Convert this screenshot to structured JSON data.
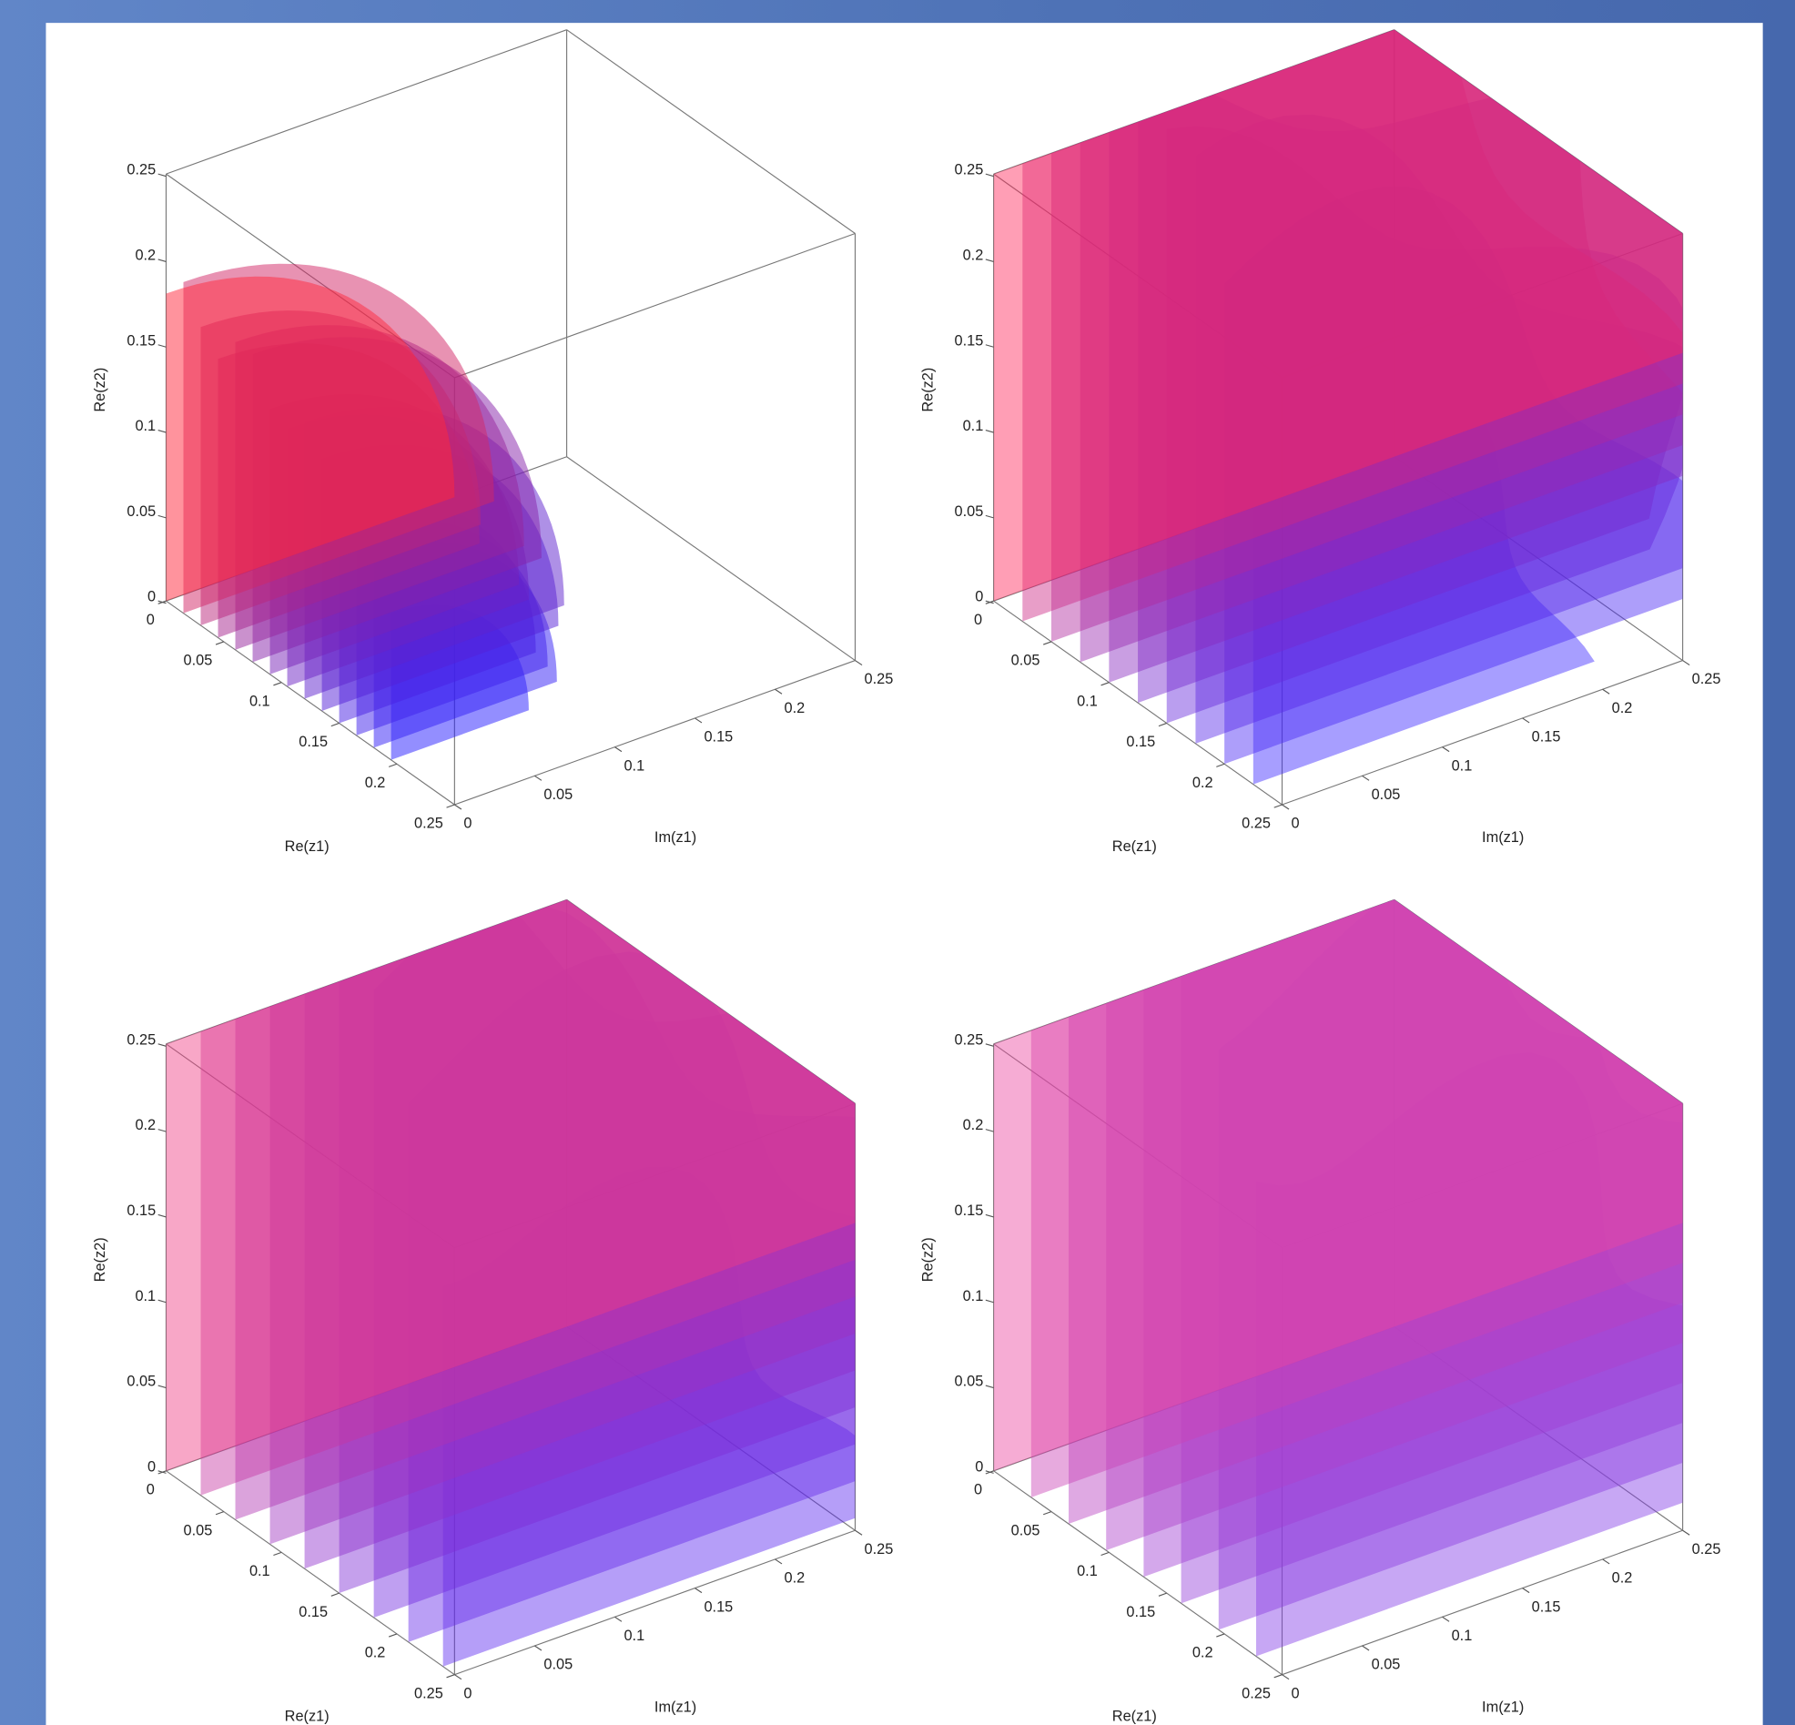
{
  "chart_data": [
    {
      "type": "surface3d",
      "xlabel": "Re(z1)",
      "ylabel": "Im(z1)",
      "zlabel": "Re(z2)",
      "xlim": [
        0,
        0.25
      ],
      "ylim": [
        0,
        0.25
      ],
      "zlim": [
        0,
        0.25
      ],
      "xticks": [
        0,
        0.05,
        0.1,
        0.15,
        0.2,
        0.25
      ],
      "yticks": [
        0,
        0.05,
        0.1,
        0.15,
        0.2,
        0.25
      ],
      "zticks": [
        0,
        0.05,
        0.1,
        0.15,
        0.2,
        0.25
      ]
    },
    {
      "type": "surface3d",
      "xlabel": "Re(z1)",
      "ylabel": "Im(z1)",
      "zlabel": "Re(z2)",
      "xlim": [
        0,
        0.25
      ],
      "ylim": [
        0,
        0.25
      ],
      "zlim": [
        0,
        0.25
      ],
      "xticks": [
        0,
        0.05,
        0.1,
        0.15,
        0.2,
        0.25
      ],
      "yticks": [
        0,
        0.05,
        0.1,
        0.15,
        0.2,
        0.25
      ],
      "zticks": [
        0,
        0.05,
        0.1,
        0.15,
        0.2,
        0.25
      ]
    },
    {
      "type": "surface3d",
      "xlabel": "Re(z1)",
      "ylabel": "Im(z1)",
      "zlabel": "Re(z2)",
      "xlim": [
        0,
        0.25
      ],
      "ylim": [
        0,
        0.25
      ],
      "zlim": [
        0,
        0.25
      ],
      "xticks": [
        0,
        0.05,
        0.1,
        0.15,
        0.2,
        0.25
      ],
      "yticks": [
        0,
        0.05,
        0.1,
        0.15,
        0.2,
        0.25
      ],
      "zticks": [
        0,
        0.05,
        0.1,
        0.15,
        0.2,
        0.25
      ]
    },
    {
      "type": "surface3d",
      "xlabel": "Re(z1)",
      "ylabel": "Im(z1)",
      "zlabel": "Re(z2)",
      "xlim": [
        0,
        0.25
      ],
      "ylim": [
        0,
        0.25
      ],
      "zlim": [
        0,
        0.25
      ],
      "xticks": [
        0,
        0.05,
        0.1,
        0.15,
        0.2,
        0.25
      ],
      "yticks": [
        0,
        0.05,
        0.1,
        0.15,
        0.2,
        0.25
      ],
      "zticks": [
        0,
        0.05,
        0.1,
        0.15,
        0.2,
        0.25
      ]
    }
  ]
}
